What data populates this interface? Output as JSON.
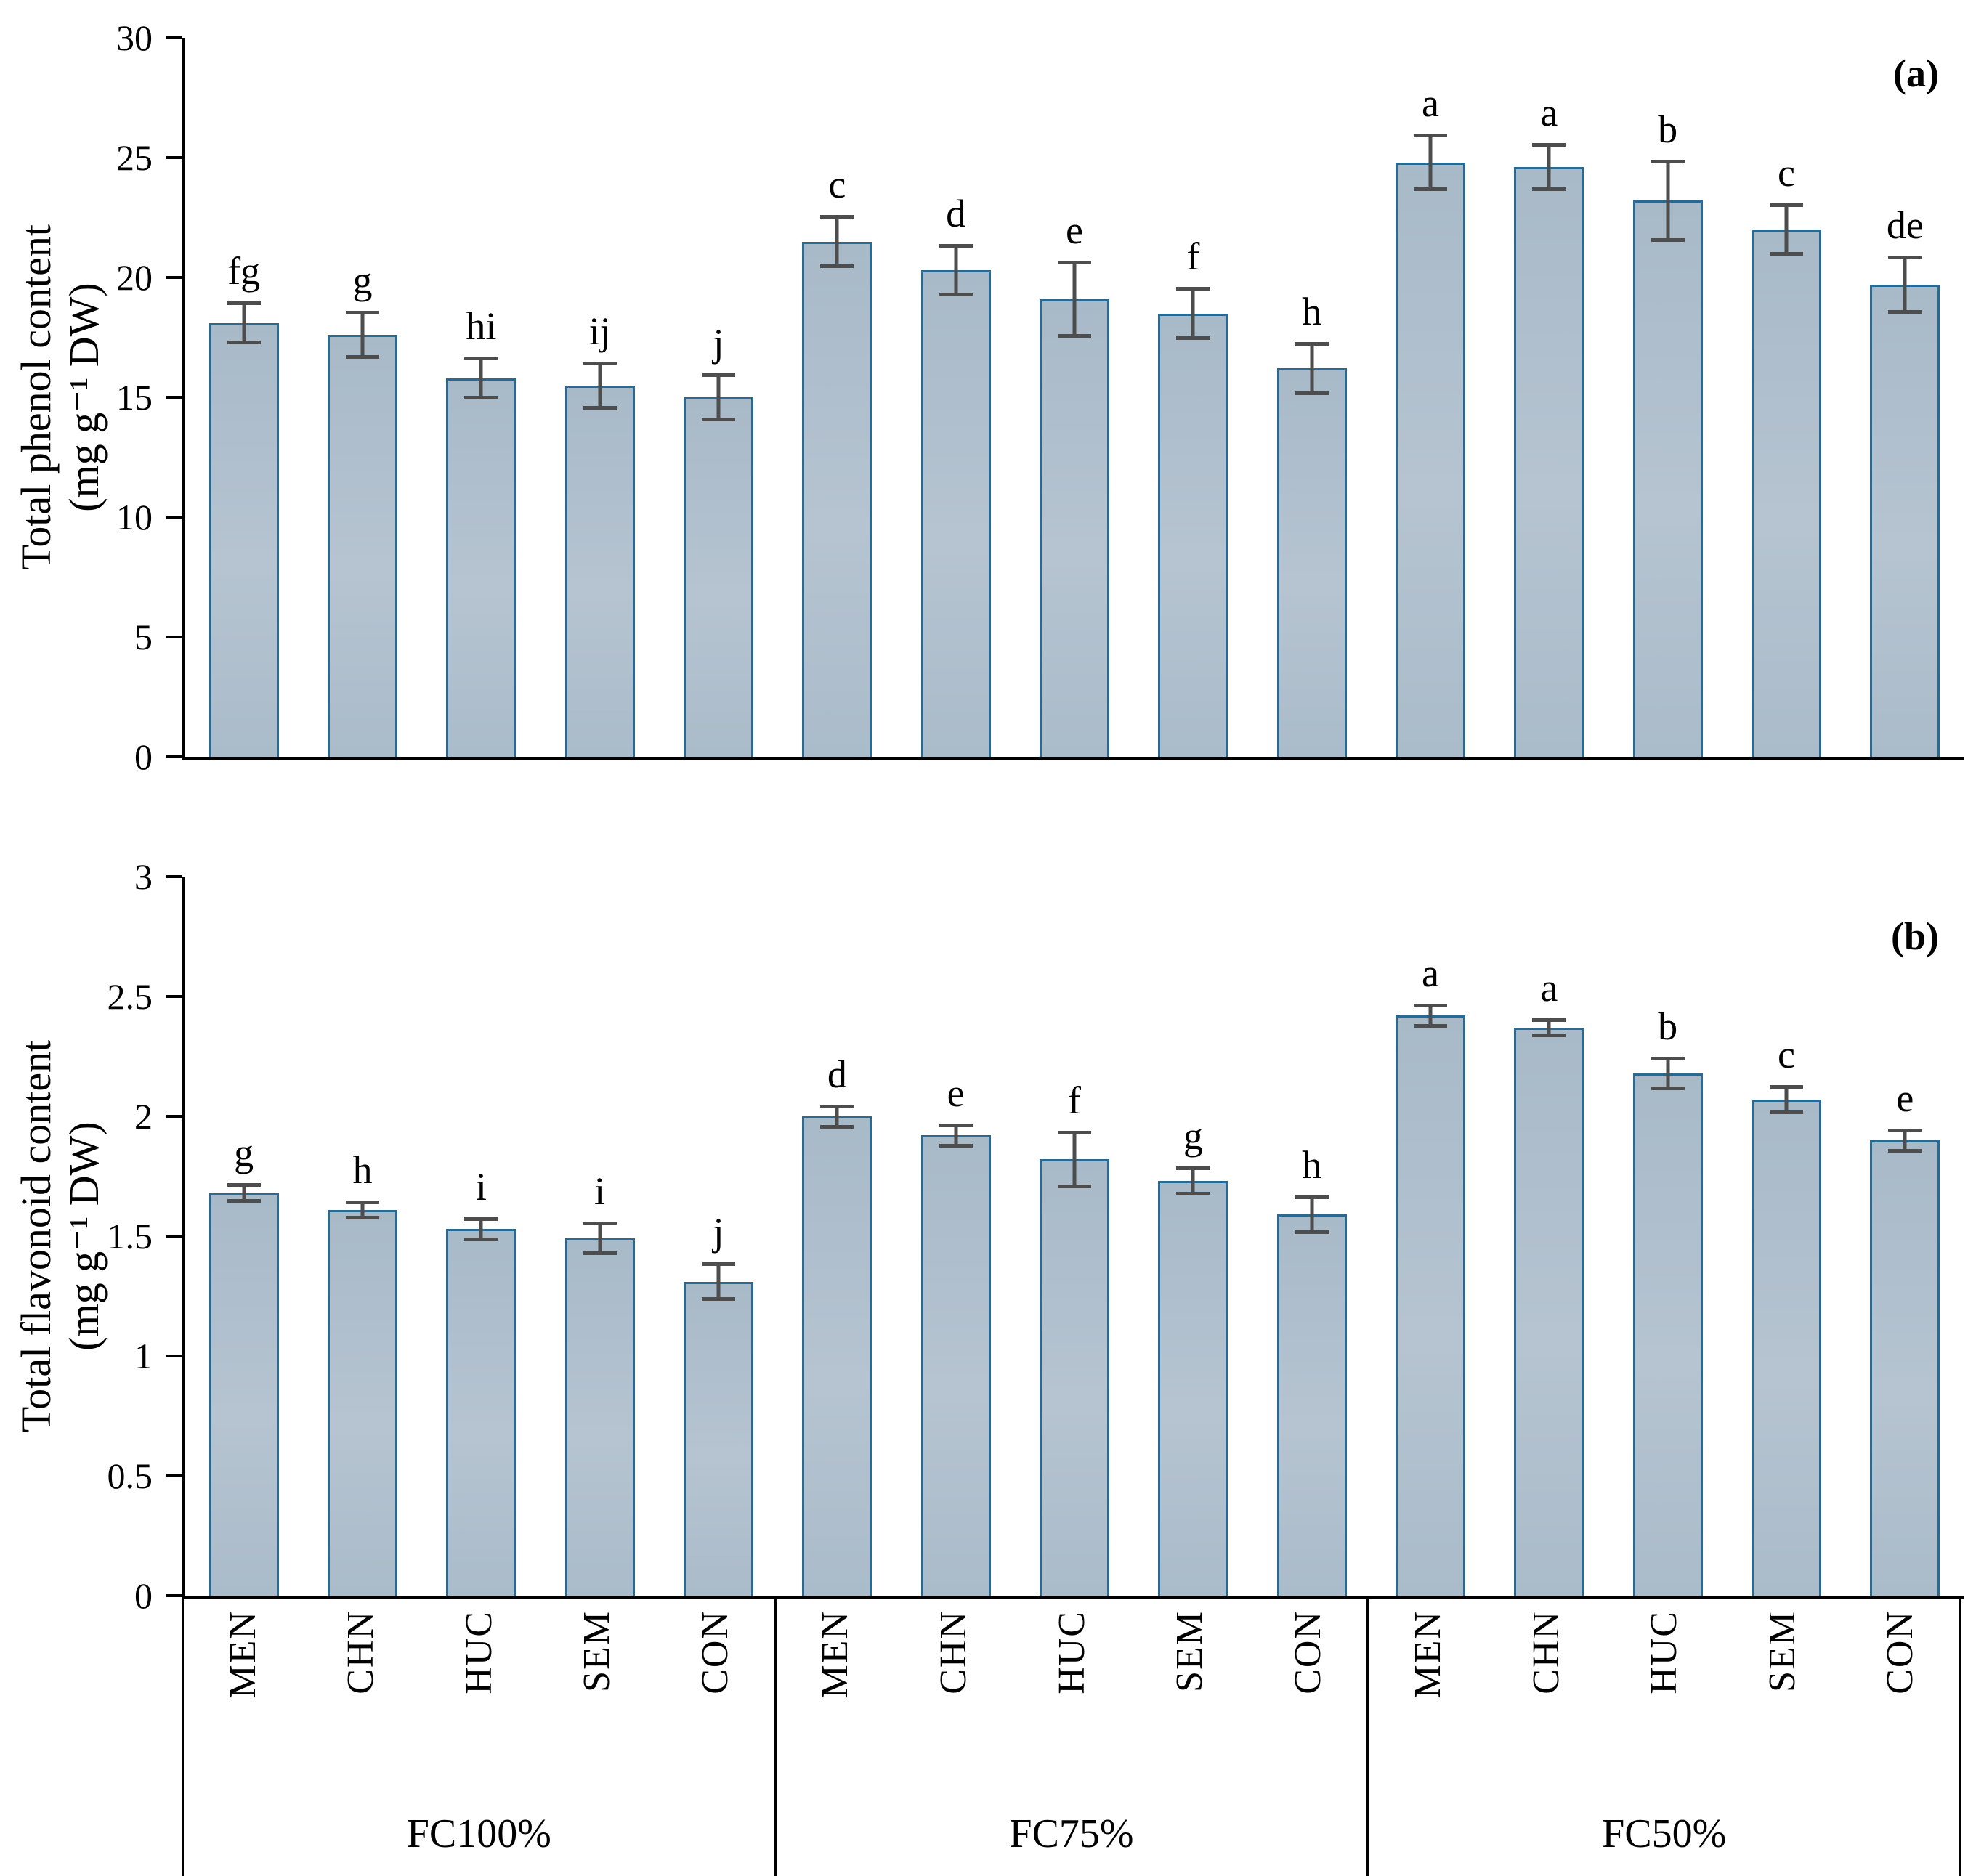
{
  "figure": {
    "panel_a_tag": "(a)",
    "panel_b_tag": "(b)"
  },
  "styles": {
    "bar_fill": "#aebfcd",
    "bar_border": "#2a6a92",
    "error_color": "#4d4d4d",
    "axis_color": "#000000"
  },
  "chart_data": [
    {
      "type": "bar",
      "id": "a",
      "panel_tag": "(a)",
      "ylabel_line1": "Total phenol content",
      "ylabel_line2": "(mg g⁻¹ DW)",
      "ylim": [
        0,
        30
      ],
      "yticks": [
        "0",
        "5",
        "10",
        "15",
        "20",
        "25",
        "30"
      ],
      "grid": false,
      "legend": "none",
      "groups": [
        "FC100%",
        "FC75%",
        "FC50%"
      ],
      "categories": [
        "MEN",
        "CHN",
        "HUC",
        "SEM",
        "CON"
      ],
      "series": [
        {
          "group": "FC100%",
          "values": [
            18.1,
            17.6,
            15.8,
            15.5,
            15.0
          ],
          "errors": [
            0.9,
            1.0,
            0.9,
            1.0,
            1.0
          ],
          "letters": [
            "fg",
            "g",
            "hi",
            "ij",
            "j"
          ]
        },
        {
          "group": "FC75%",
          "values": [
            21.5,
            20.3,
            19.1,
            18.5,
            16.2
          ],
          "errors": [
            1.1,
            1.1,
            1.6,
            1.1,
            1.1
          ],
          "letters": [
            "c",
            "d",
            "e",
            "f",
            "h"
          ]
        },
        {
          "group": "FC50%",
          "values": [
            24.8,
            24.6,
            23.2,
            22.0,
            19.7
          ],
          "errors": [
            1.2,
            1.0,
            1.7,
            1.1,
            1.2
          ],
          "letters": [
            "a",
            "a",
            "b",
            "c",
            "de"
          ]
        }
      ]
    },
    {
      "type": "bar",
      "id": "b",
      "panel_tag": "(b)",
      "ylabel_line1": "Total flavonoid content",
      "ylabel_line2": "(mg g⁻¹ DW)",
      "ylim": [
        0,
        3
      ],
      "yticks": [
        "0",
        "0.5",
        "1",
        "1.5",
        "2",
        "2.5",
        "3"
      ],
      "grid": false,
      "legend": "none",
      "groups": [
        "FC100%",
        "FC75%",
        "FC50%"
      ],
      "categories": [
        "MEN",
        "CHN",
        "HUC",
        "SEM",
        "CON"
      ],
      "series": [
        {
          "group": "FC100%",
          "values": [
            1.68,
            1.61,
            1.53,
            1.49,
            1.31
          ],
          "errors": [
            0.04,
            0.04,
            0.05,
            0.07,
            0.08
          ],
          "letters": [
            "g",
            "h",
            "i",
            "i",
            "j"
          ]
        },
        {
          "group": "FC75%",
          "values": [
            2.0,
            1.92,
            1.82,
            1.73,
            1.59
          ],
          "errors": [
            0.05,
            0.05,
            0.12,
            0.06,
            0.08
          ],
          "letters": [
            "d",
            "e",
            "f",
            "g",
            "h"
          ]
        },
        {
          "group": "FC50%",
          "values": [
            2.42,
            2.37,
            2.18,
            2.07,
            1.9
          ],
          "errors": [
            0.05,
            0.04,
            0.07,
            0.06,
            0.05
          ],
          "letters": [
            "a",
            "a",
            "b",
            "c",
            "e"
          ]
        }
      ]
    }
  ]
}
